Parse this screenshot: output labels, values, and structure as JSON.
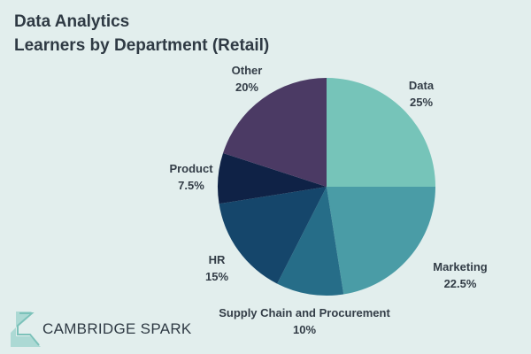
{
  "chart_data": {
    "type": "pie",
    "title": "Data Analytics",
    "subtitle": "Learners by Department (Retail)",
    "start": "top",
    "direction": "clockwise",
    "slices": [
      {
        "label": "Data",
        "value": 25,
        "display": "25%",
        "color": "#76c4b9"
      },
      {
        "label": "Marketing",
        "value": 22.5,
        "display": "22.5%",
        "color": "#4a9ca6"
      },
      {
        "label": "Supply Chain and Procurement",
        "value": 10,
        "display": "10%",
        "color": "#266d88"
      },
      {
        "label": "HR",
        "value": 15,
        "display": "15%",
        "color": "#15466b"
      },
      {
        "label": "Product",
        "value": 7.5,
        "display": "7.5%",
        "color": "#0f2246"
      },
      {
        "label": "Other",
        "value": 20,
        "display": "20%",
        "color": "#4b3a64"
      }
    ]
  },
  "logo": {
    "text": "CAMBRIDGE SPARK"
  }
}
